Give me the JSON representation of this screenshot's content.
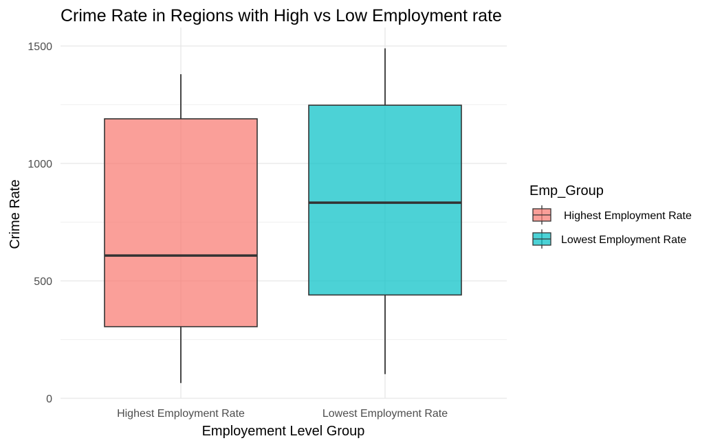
{
  "chart_data": {
    "type": "boxplot",
    "title": "Crime Rate in Regions with High vs Low Employment rate",
    "xlabel": "Employement Level Group",
    "ylabel": "Crime Rate",
    "ylim": [
      0,
      1500
    ],
    "yticks": [
      0,
      500,
      1000,
      1500
    ],
    "ytick_labels": [
      "0",
      "500",
      "1000",
      "1500"
    ],
    "grid": true,
    "legend": {
      "title": "Emp_Group",
      "position": "right",
      "entries": [
        {
          "label": "Highest Employment Rate",
          "color": "#F8766D"
        },
        {
          "label": "Lowest Employment Rate",
          "color": "#00BFC4"
        }
      ]
    },
    "categories": [
      "Highest Employment Rate",
      "Lowest Employment Rate"
    ],
    "boxes": [
      {
        "category": "Highest Employment Rate",
        "color": "#F8766D",
        "min": 65,
        "q1": 305,
        "median": 608,
        "q3": 1190,
        "max": 1380
      },
      {
        "category": "Lowest Employment Rate",
        "color": "#00BFC4",
        "min": 103,
        "q1": 440,
        "median": 833,
        "q3": 1248,
        "max": 1490
      }
    ]
  }
}
